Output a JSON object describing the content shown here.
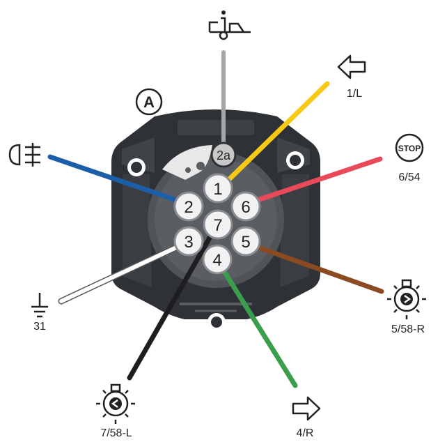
{
  "callout": "A",
  "pins": [
    {
      "label": "1",
      "wire": "#f7c815"
    },
    {
      "label": "2",
      "wire": "#1c5fa8"
    },
    {
      "label": "3",
      "wire": "#ffffff"
    },
    {
      "label": "4",
      "wire": "#3a9e4c"
    },
    {
      "label": "5",
      "wire": "#8a4a22"
    },
    {
      "label": "6",
      "wire": "#e84a5a"
    },
    {
      "label": "7",
      "wire": "#222222"
    },
    {
      "label": "2a",
      "wire": "#a6a6a6"
    }
  ],
  "terminals": [
    {
      "code": "1/L",
      "icon": "left-arrow-icon"
    },
    {
      "code": "",
      "icon": "fog-light-icon"
    },
    {
      "code": "31",
      "icon": "ground-icon"
    },
    {
      "code": "4/R",
      "icon": "right-arrow-icon"
    },
    {
      "code": "5/58-R",
      "icon": "right-lamp-icon"
    },
    {
      "code": "6/54",
      "icon": "stop-icon"
    },
    {
      "code": "7/58-L",
      "icon": "left-lamp-icon"
    },
    {
      "code": "",
      "icon": "trailer-info-icon"
    }
  ],
  "stop_text": "STOP"
}
